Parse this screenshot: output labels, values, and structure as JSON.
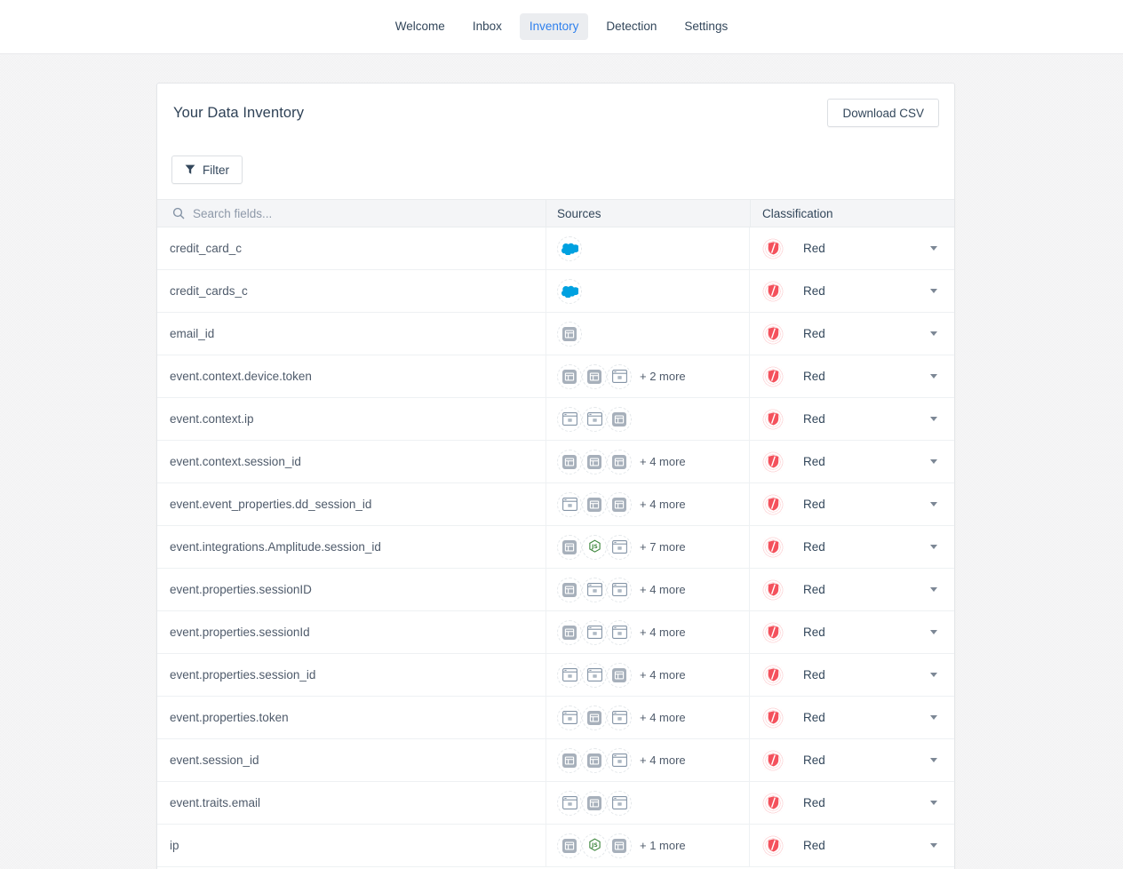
{
  "nav": {
    "items": [
      {
        "label": "Welcome",
        "active": false
      },
      {
        "label": "Inbox",
        "active": false
      },
      {
        "label": "Inventory",
        "active": true
      },
      {
        "label": "Detection",
        "active": false
      },
      {
        "label": "Settings",
        "active": false
      }
    ]
  },
  "panel": {
    "title": "Your Data Inventory",
    "download_button_label": "Download CSV",
    "filter_button_label": "Filter"
  },
  "table": {
    "search_placeholder": "Search fields...",
    "columns": {
      "sources": "Sources",
      "classification": "Classification"
    },
    "rows": [
      {
        "field": "credit_card_c",
        "sources": [
          "salesforce"
        ],
        "more": "",
        "classification": "Red"
      },
      {
        "field": "credit_cards_c",
        "sources": [
          "salesforce"
        ],
        "more": "",
        "classification": "Red"
      },
      {
        "field": "email_id",
        "sources": [
          "app-filled"
        ],
        "more": "",
        "classification": "Red"
      },
      {
        "field": "event.context.device.token",
        "sources": [
          "app-filled",
          "app-filled",
          "app-outline"
        ],
        "more": "+ 2 more",
        "classification": "Red"
      },
      {
        "field": "event.context.ip",
        "sources": [
          "app-outline",
          "app-outline",
          "app-filled"
        ],
        "more": "",
        "classification": "Red"
      },
      {
        "field": "event.context.session_id",
        "sources": [
          "app-filled",
          "app-filled",
          "app-filled"
        ],
        "more": "+ 4 more",
        "classification": "Red"
      },
      {
        "field": "event.event_properties.dd_session_id",
        "sources": [
          "app-outline",
          "app-filled",
          "app-filled"
        ],
        "more": "+ 4 more",
        "classification": "Red"
      },
      {
        "field": "event.integrations.Amplitude.session_id",
        "sources": [
          "app-filled",
          "nodejs",
          "app-outline"
        ],
        "more": "+ 7 more",
        "classification": "Red"
      },
      {
        "field": "event.properties.sessionID",
        "sources": [
          "app-filled",
          "app-outline",
          "app-outline"
        ],
        "more": "+ 4 more",
        "classification": "Red"
      },
      {
        "field": "event.properties.sessionId",
        "sources": [
          "app-filled",
          "app-outline",
          "app-outline"
        ],
        "more": "+ 4 more",
        "classification": "Red"
      },
      {
        "field": "event.properties.session_id",
        "sources": [
          "app-outline",
          "app-outline",
          "app-filled"
        ],
        "more": "+ 4 more",
        "classification": "Red"
      },
      {
        "field": "event.properties.token",
        "sources": [
          "app-outline",
          "app-filled",
          "app-outline"
        ],
        "more": "+ 4 more",
        "classification": "Red"
      },
      {
        "field": "event.session_id",
        "sources": [
          "app-filled",
          "app-filled",
          "app-outline"
        ],
        "more": "+ 4 more",
        "classification": "Red"
      },
      {
        "field": "event.traits.email",
        "sources": [
          "app-outline",
          "app-filled",
          "app-outline"
        ],
        "more": "",
        "classification": "Red"
      },
      {
        "field": "ip",
        "sources": [
          "app-filled",
          "nodejs",
          "app-filled"
        ],
        "more": "+ 1 more",
        "classification": "Red"
      }
    ]
  },
  "icons": {
    "search": "search-icon",
    "funnel": "filter-funnel-icon",
    "salesforce": "salesforce-cloud-icon",
    "app-filled": "web-app-filled-icon",
    "app-outline": "web-app-outline-icon",
    "nodejs": "nodejs-icon",
    "shield": "red-classification-shield-icon",
    "caret": "chevron-down-icon"
  },
  "colors": {
    "accent_blue": "#2f80ed",
    "active_tab_bg": "#ebedf0",
    "classification_red": "#f4515c",
    "salesforce_blue": "#00a1e0",
    "nodejs_green": "#3f873f",
    "header_row_bg": "#f4f5f7",
    "text_dark": "#33475b",
    "text_muted": "#8e99a9"
  }
}
